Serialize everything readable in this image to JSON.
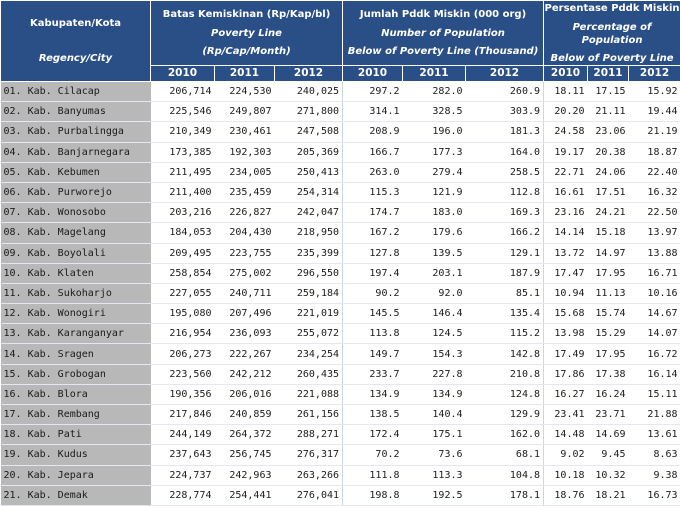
{
  "header": {
    "region": {
      "line1": "Kabupaten/Kota",
      "line2": "Regency/City"
    },
    "poverty_line": {
      "line1": "Batas Kemiskinan (Rp/Kap/bl)",
      "line2": "Poverty Line",
      "line3": "(Rp/Cap/Month)"
    },
    "poor_population": {
      "line1": "Jumlah Pddk Miskin (000 org)",
      "line2": "Number of Population",
      "line3": "Below of Poverty Line (Thousand)"
    },
    "poor_percentage": {
      "line1": "Persentase Pddk Miskin",
      "line2": "Percentage of Population",
      "line3": "Below of Poverty Line"
    },
    "years": [
      "2010",
      "2011",
      "2012"
    ]
  },
  "rows": [
    {
      "region": "01. Kab. Cilacap",
      "pl": [
        "206,714",
        "224,530",
        "240,025"
      ],
      "pop": [
        "297.2",
        "282.0",
        "260.9"
      ],
      "pct": [
        "18.11",
        "17.15",
        "15.92"
      ]
    },
    {
      "region": "02. Kab. Banyumas",
      "pl": [
        "225,546",
        "249,807",
        "271,800"
      ],
      "pop": [
        "314.1",
        "328.5",
        "303.9"
      ],
      "pct": [
        "20.20",
        "21.11",
        "19.44"
      ]
    },
    {
      "region": "03. Kab. Purbalingga",
      "pl": [
        "210,349",
        "230,461",
        "247,508"
      ],
      "pop": [
        "208.9",
        "196.0",
        "181.3"
      ],
      "pct": [
        "24.58",
        "23.06",
        "21.19"
      ]
    },
    {
      "region": "04. Kab. Banjarnegara",
      "pl": [
        "173,385",
        "192,303",
        "205,369"
      ],
      "pop": [
        "166.7",
        "177.3",
        "164.0"
      ],
      "pct": [
        "19.17",
        "20.38",
        "18.87"
      ]
    },
    {
      "region": "05. Kab. Kebumen",
      "pl": [
        "211,495",
        "234,005",
        "250,413"
      ],
      "pop": [
        "263.0",
        "279.4",
        "258.5"
      ],
      "pct": [
        "22.71",
        "24.06",
        "22.40"
      ]
    },
    {
      "region": "06. Kab. Purworejo",
      "pl": [
        "211,400",
        "235,459",
        "254,314"
      ],
      "pop": [
        "115.3",
        "121.9",
        "112.8"
      ],
      "pct": [
        "16.61",
        "17.51",
        "16.32"
      ]
    },
    {
      "region": "07. Kab. Wonosobo",
      "pl": [
        "203,216",
        "226,827",
        "242,047"
      ],
      "pop": [
        "174.7",
        "183.0",
        "169.3"
      ],
      "pct": [
        "23.16",
        "24.21",
        "22.50"
      ]
    },
    {
      "region": "08. Kab. Magelang",
      "pl": [
        "184,053",
        "204,430",
        "218,950"
      ],
      "pop": [
        "167.2",
        "179.6",
        "166.2"
      ],
      "pct": [
        "14.14",
        "15.18",
        "13.97"
      ]
    },
    {
      "region": "09. Kab. Boyolali",
      "pl": [
        "209,495",
        "223,755",
        "235,399"
      ],
      "pop": [
        "127.8",
        "139.5",
        "129.1"
      ],
      "pct": [
        "13.72",
        "14.97",
        "13.88"
      ]
    },
    {
      "region": "10. Kab. Klaten",
      "pl": [
        "258,854",
        "275,002",
        "296,550"
      ],
      "pop": [
        "197.4",
        "203.1",
        "187.9"
      ],
      "pct": [
        "17.47",
        "17.95",
        "16.71"
      ]
    },
    {
      "region": "11. Kab. Sukoharjo",
      "pl": [
        "227,055",
        "240,711",
        "259,184"
      ],
      "pop": [
        "90.2",
        "92.0",
        "85.1"
      ],
      "pct": [
        "10.94",
        "11.13",
        "10.16"
      ]
    },
    {
      "region": "12. Kab. Wonogiri",
      "pl": [
        "195,080",
        "207,496",
        "221,019"
      ],
      "pop": [
        "145.5",
        "146.4",
        "135.4"
      ],
      "pct": [
        "15.68",
        "15.74",
        "14.67"
      ]
    },
    {
      "region": "13. Kab. Karanganyar",
      "pl": [
        "216,954",
        "236,093",
        "255,072"
      ],
      "pop": [
        "113.8",
        "124.5",
        "115.2"
      ],
      "pct": [
        "13.98",
        "15.29",
        "14.07"
      ]
    },
    {
      "region": "14. Kab. Sragen",
      "pl": [
        "206,273",
        "222,267",
        "234,254"
      ],
      "pop": [
        "149.7",
        "154.3",
        "142.8"
      ],
      "pct": [
        "17.49",
        "17.95",
        "16.72"
      ]
    },
    {
      "region": "15. Kab. Grobogan",
      "pl": [
        "223,560",
        "242,212",
        "260,435"
      ],
      "pop": [
        "233.7",
        "227.8",
        "210.8"
      ],
      "pct": [
        "17.86",
        "17.38",
        "16.14"
      ]
    },
    {
      "region": "16. Kab. Blora",
      "pl": [
        "190,356",
        "206,016",
        "221,088"
      ],
      "pop": [
        "134.9",
        "134.9",
        "124.8"
      ],
      "pct": [
        "16.27",
        "16.24",
        "15.11"
      ]
    },
    {
      "region": "17. Kab. Rembang",
      "pl": [
        "217,846",
        "240,859",
        "261,156"
      ],
      "pop": [
        "138.5",
        "140.4",
        "129.9"
      ],
      "pct": [
        "23.41",
        "23.71",
        "21.88"
      ]
    },
    {
      "region": "18. Kab. Pati",
      "pl": [
        "244,149",
        "264,372",
        "288,271"
      ],
      "pop": [
        "172.4",
        "175.1",
        "162.0"
      ],
      "pct": [
        "14.48",
        "14.69",
        "13.61"
      ]
    },
    {
      "region": "19. Kab. Kudus",
      "pl": [
        "237,643",
        "256,745",
        "276,317"
      ],
      "pop": [
        "70.2",
        "73.6",
        "68.1"
      ],
      "pct": [
        "9.02",
        "9.45",
        "8.63"
      ]
    },
    {
      "region": "20. Kab. Jepara",
      "pl": [
        "224,737",
        "242,963",
        "263,266"
      ],
      "pop": [
        "111.8",
        "113.3",
        "104.8"
      ],
      "pct": [
        "10.18",
        "10.32",
        "9.38"
      ]
    },
    {
      "region": "21. Kab. Demak",
      "pl": [
        "228,774",
        "254,441",
        "276,041"
      ],
      "pop": [
        "198.8",
        "192.5",
        "178.1"
      ],
      "pct": [
        "18.76",
        "18.21",
        "16.73"
      ]
    }
  ]
}
